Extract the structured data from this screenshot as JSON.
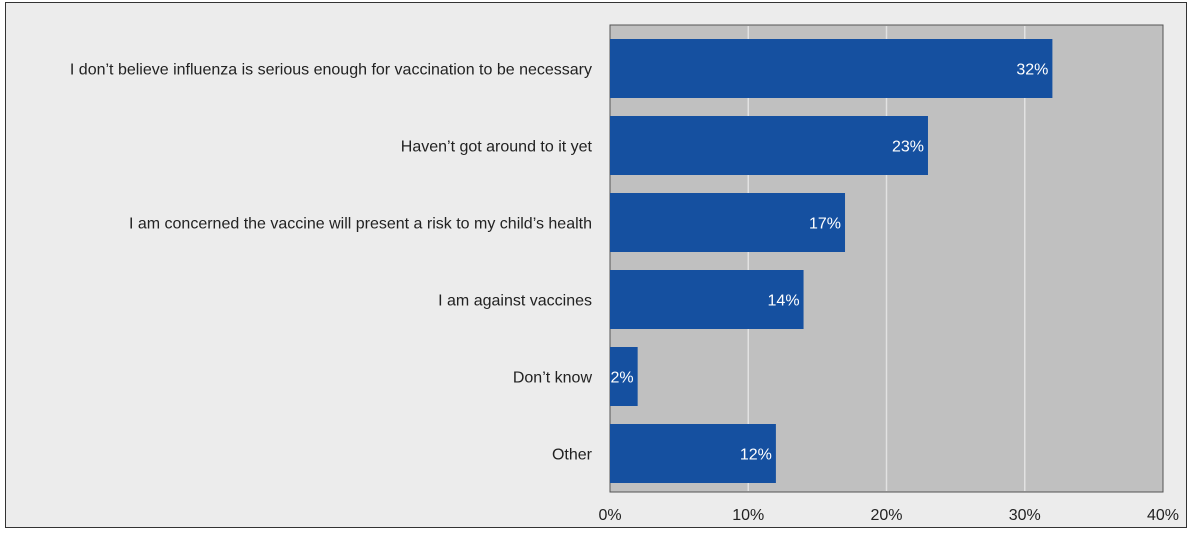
{
  "colors": {
    "bar": "#1550a0",
    "plot_bg": "#c0c0c0",
    "outer_bg": "#ececec",
    "grid": "#e2e2e2"
  },
  "chart_data": {
    "type": "bar",
    "orientation": "horizontal",
    "categories": [
      "I don’t believe influenza is serious enough for vaccination to be necessary",
      "Haven’t got around to it yet",
      "I am concerned the vaccine will present a risk to my child’s health",
      "I am against vaccines",
      "Don’t know",
      "Other"
    ],
    "values": [
      32,
      23,
      17,
      14,
      2,
      12
    ],
    "value_labels": [
      "32%",
      "23%",
      "17%",
      "14%",
      "2%",
      "12%"
    ],
    "xlim": [
      0,
      40
    ],
    "x_ticks": [
      0,
      10,
      20,
      30,
      40
    ],
    "x_tick_labels": [
      "0%",
      "10%",
      "20%",
      "30%",
      "40%"
    ],
    "grid": true,
    "title": "",
    "xlabel": "",
    "ylabel": ""
  }
}
